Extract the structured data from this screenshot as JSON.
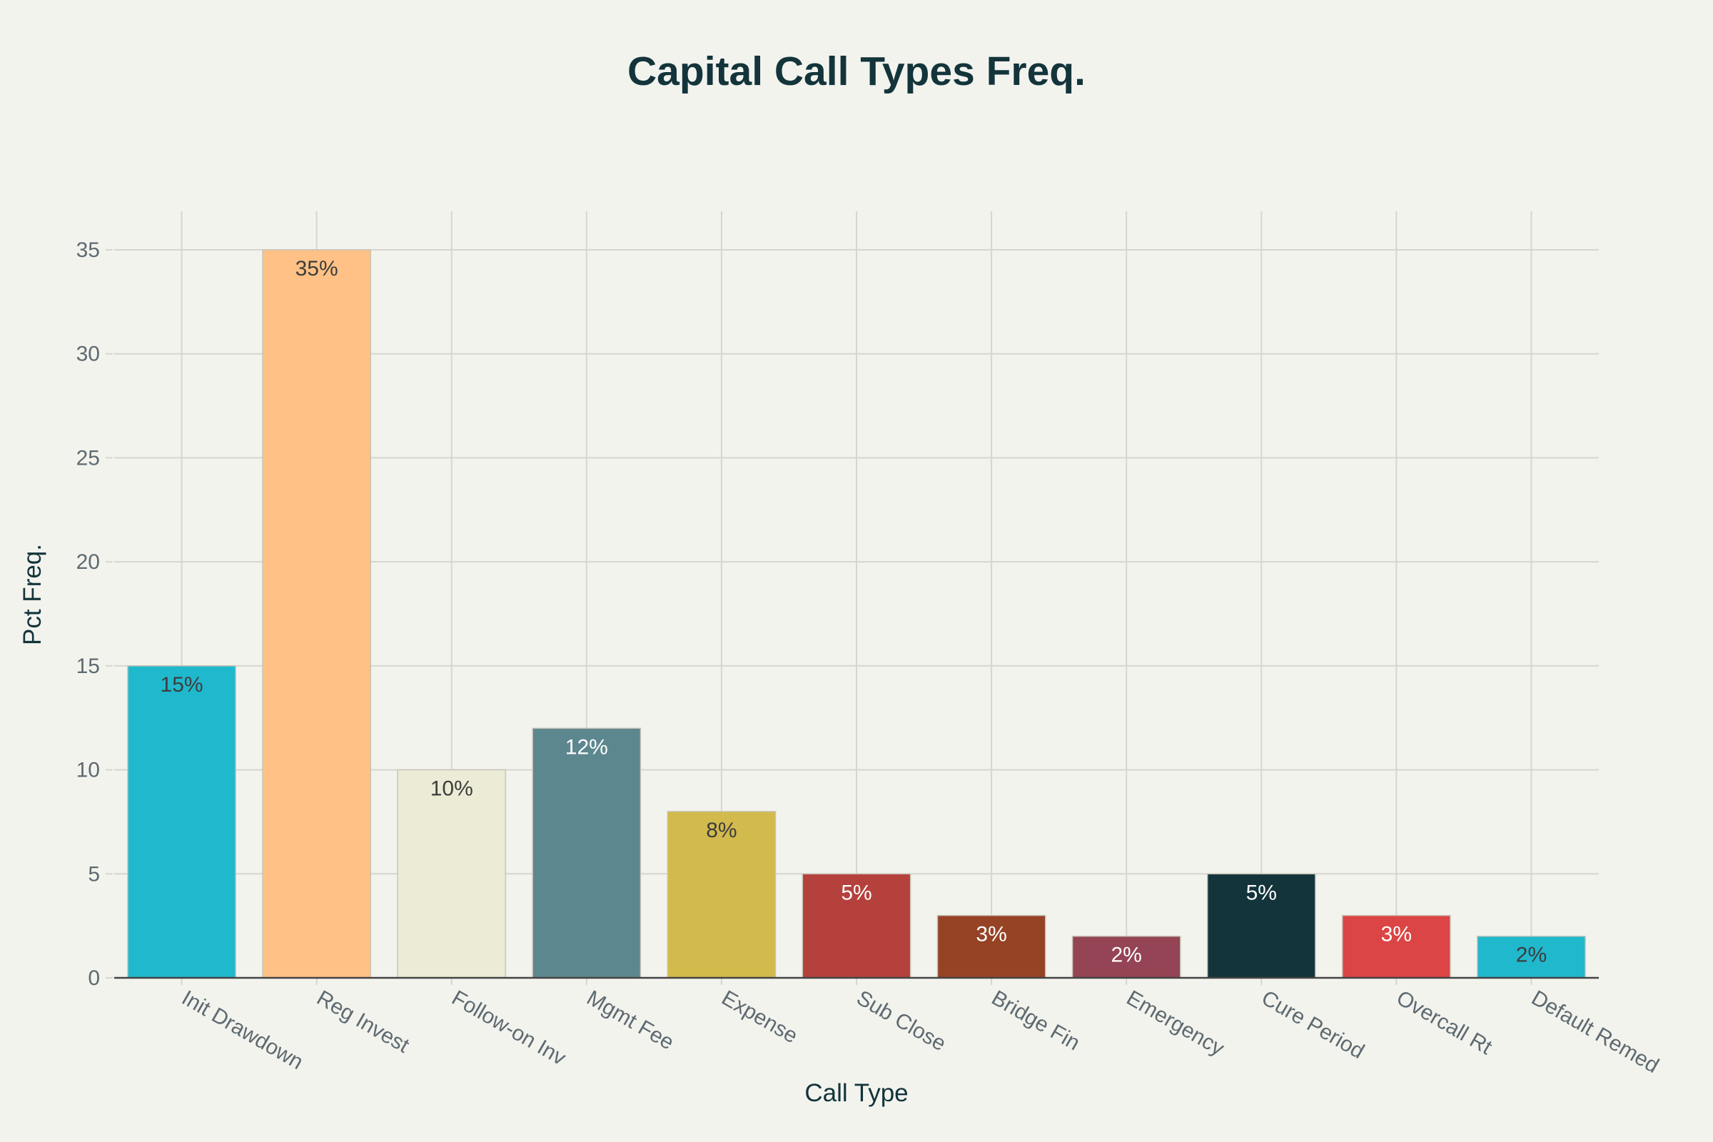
{
  "chart_data": {
    "type": "bar",
    "title": "Capital Call Types Freq.",
    "xlabel": "Call Type",
    "ylabel": "Pct Freq.",
    "categories": [
      "Init Drawdown",
      "Reg Invest",
      "Follow-on Inv",
      "Mgmt Fee",
      "Expense",
      "Sub Close",
      "Bridge Fin",
      "Emergency",
      "Cure Period",
      "Overcall Rt",
      "Default Remed"
    ],
    "values": [
      15,
      35,
      10,
      12,
      8,
      5,
      3,
      2,
      5,
      3,
      2
    ],
    "data_labels": [
      "15%",
      "35%",
      "10%",
      "12%",
      "8%",
      "5%",
      "3%",
      "2%",
      "5%",
      "3%",
      "2%"
    ],
    "colors": [
      "#1FB8CD",
      "#FFC185",
      "#ECEBD5",
      "#5D878F",
      "#D2BA4C",
      "#B4413C",
      "#964325",
      "#944454",
      "#13343B",
      "#DB4545",
      "#1FB8CD"
    ],
    "label_colors": [
      "#3D3D3D",
      "#3D3D3D",
      "#3D3D3D",
      "#FFFFFF",
      "#3D3D3D",
      "#FFFFFF",
      "#FFFFFF",
      "#FFFFFF",
      "#FFFFFF",
      "#FFFFFF",
      "#3D3D3D"
    ],
    "yticks": [
      0,
      5,
      10,
      15,
      20,
      25,
      30,
      35
    ],
    "ylim": [
      0,
      36.8
    ],
    "grid": true,
    "legend": "none",
    "xtick_rotation": 30
  }
}
